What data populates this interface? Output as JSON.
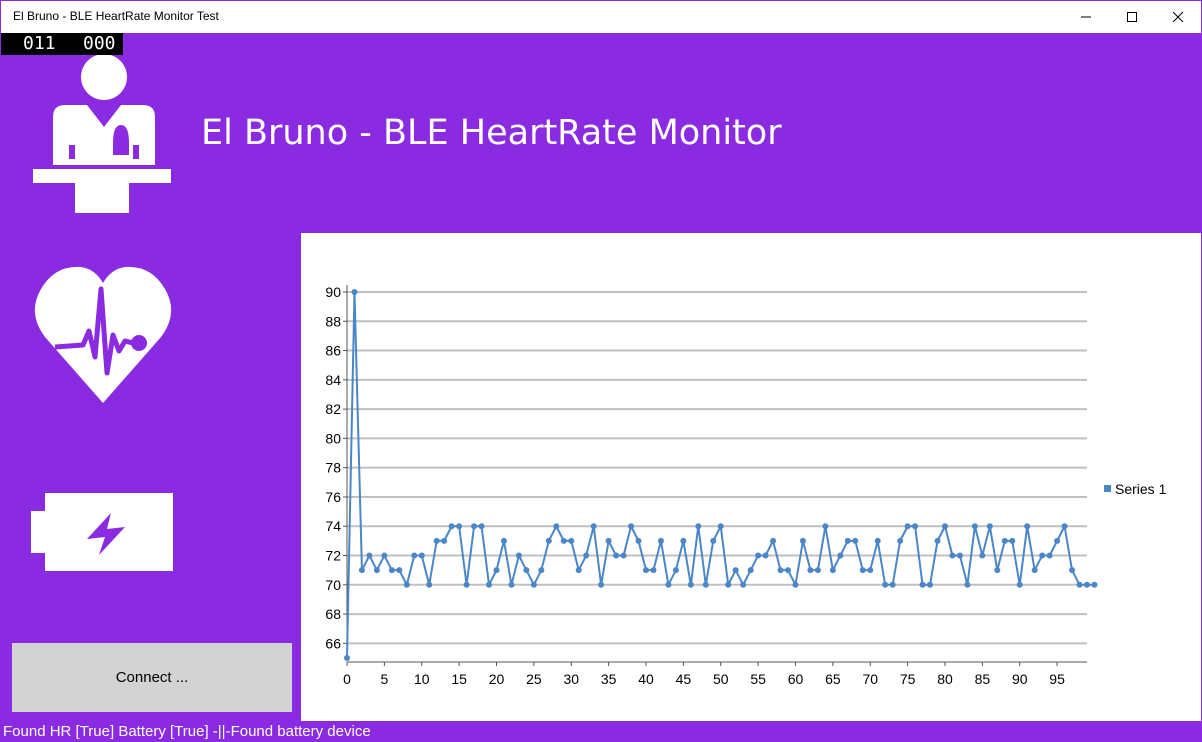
{
  "window": {
    "title": "El Bruno - BLE HeartRate Monitor Test",
    "controls": [
      "minimize-icon",
      "maximize-icon",
      "close-icon"
    ]
  },
  "counter": {
    "left": "011",
    "right": "000"
  },
  "header": {
    "title": "El Bruno - BLE HeartRate Monitor"
  },
  "icons": {
    "doctor": "doctor-icon",
    "heart": "heart-pulse-icon",
    "battery": "battery-charging-icon"
  },
  "connect_button": {
    "label": "Connect ..."
  },
  "status": {
    "text": "Found HR [True] Battery [True]  -||-Found battery device"
  },
  "colors": {
    "accent": "#8a2be2",
    "series": "#4a86c8",
    "grid": "#c0c0c0",
    "button": "#d3d3d3"
  },
  "chart_data": {
    "type": "line",
    "title": "",
    "xlabel": "",
    "ylabel": "",
    "ylim": [
      65,
      90
    ],
    "xlim": [
      0,
      99
    ],
    "yticks": [
      "66",
      "68",
      "70",
      "72",
      "74",
      "76",
      "78",
      "80",
      "82",
      "84",
      "86",
      "88",
      "90"
    ],
    "xticks": [
      "0",
      "5",
      "10",
      "15",
      "20",
      "25",
      "30",
      "35",
      "40",
      "45",
      "50",
      "55",
      "60",
      "65",
      "70",
      "75",
      "80",
      "85",
      "90",
      "95"
    ],
    "legend": "right",
    "grid": true,
    "series": [
      {
        "name": "Series 1",
        "values": [
          65,
          90,
          71,
          72,
          71,
          72,
          71,
          71,
          70,
          72,
          72,
          70,
          73,
          73,
          74,
          74,
          70,
          74,
          74,
          70,
          71,
          73,
          70,
          72,
          71,
          70,
          71,
          73,
          74,
          73,
          73,
          71,
          72,
          74,
          70,
          73,
          72,
          72,
          74,
          73,
          71,
          71,
          73,
          70,
          71,
          73,
          70,
          74,
          70,
          73,
          74,
          70,
          71,
          70,
          71,
          72,
          72,
          73,
          71,
          71,
          70,
          73,
          71,
          71,
          74,
          71,
          72,
          73,
          73,
          71,
          71,
          73,
          70,
          70,
          73,
          74,
          74,
          70,
          70,
          73,
          74,
          72,
          72,
          70,
          74,
          72,
          74,
          71,
          73,
          73,
          70,
          74,
          71,
          72,
          72,
          73,
          74,
          71,
          70,
          70,
          70
        ]
      }
    ]
  }
}
